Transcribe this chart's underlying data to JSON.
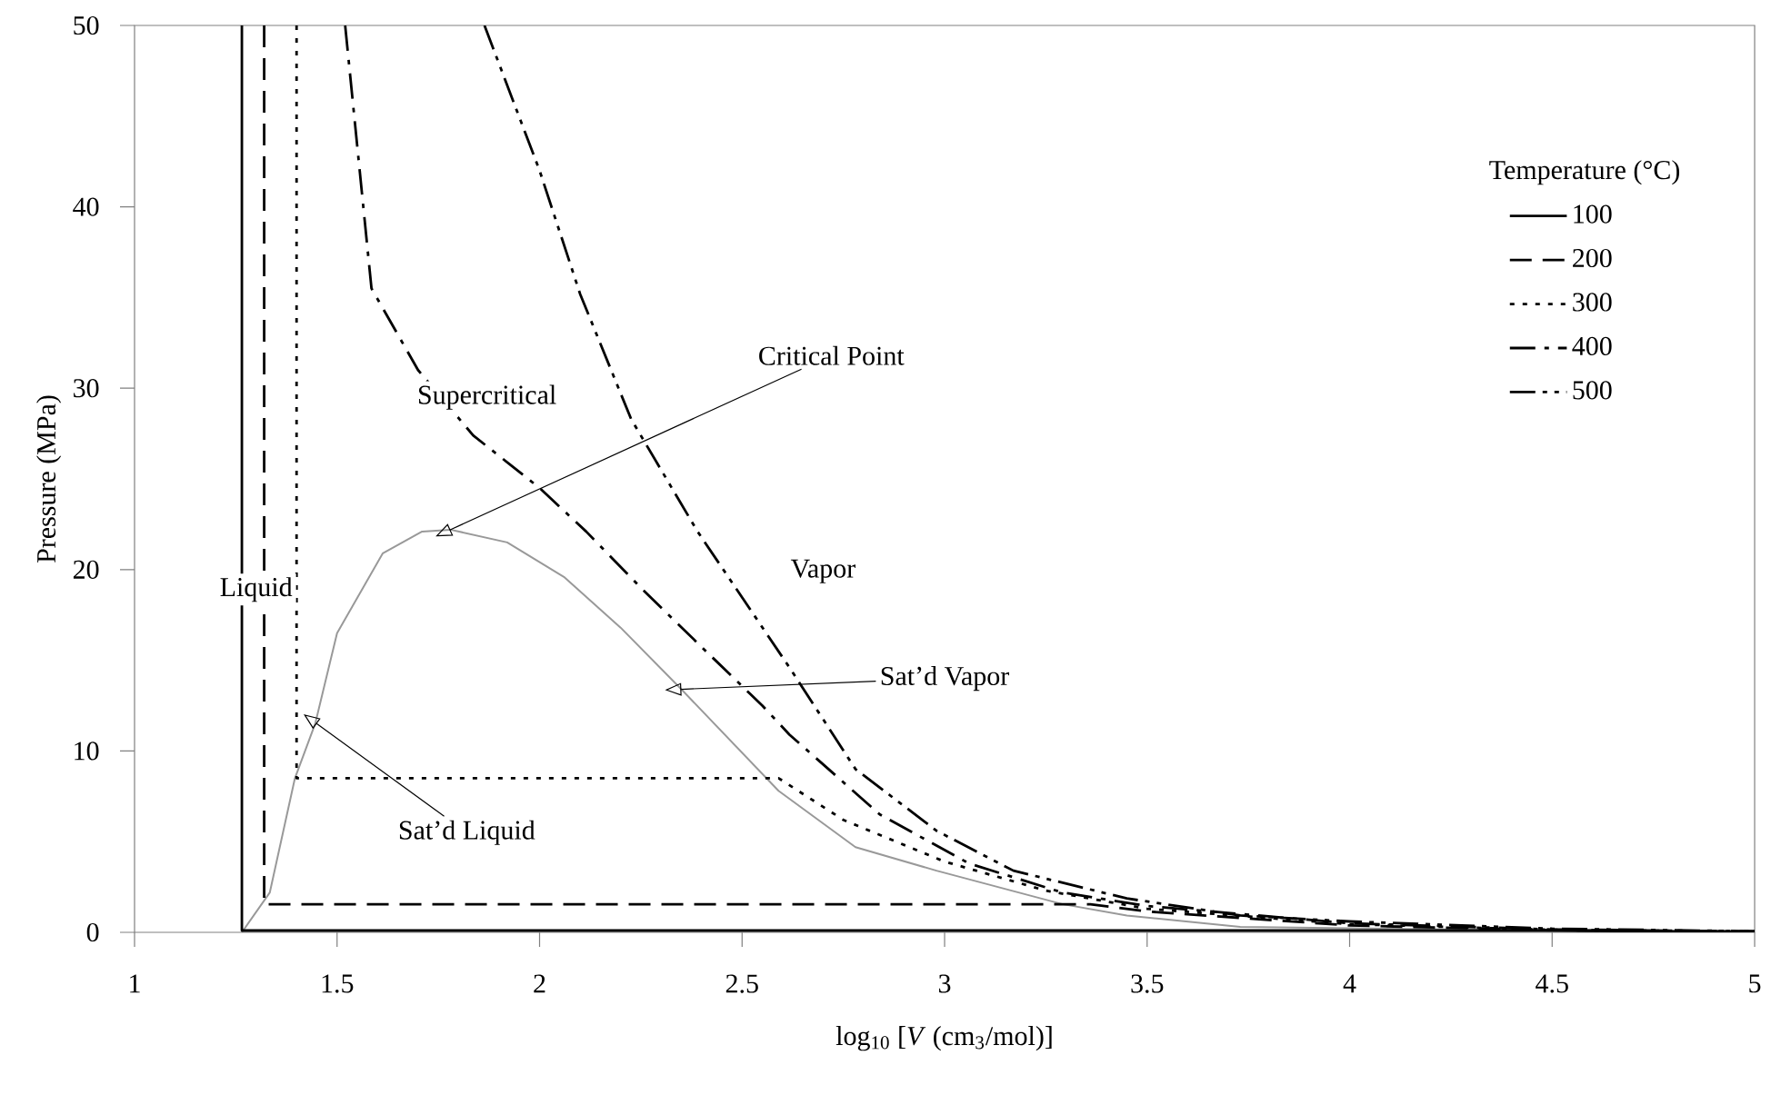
{
  "chart_data": {
    "type": "line",
    "xlabel": "log$_{10}$ [*V* (cm$_{3}$/mol)]",
    "ylabel": "Pressure (MPa)",
    "legend_title": "Temperature (°C)",
    "xlim": [
      1,
      5
    ],
    "ylim": [
      0,
      50
    ],
    "xticks": [
      1,
      1.5,
      2,
      2.5,
      3,
      3.5,
      4,
      4.5,
      5
    ],
    "yticks": [
      0,
      10,
      20,
      30,
      40,
      50
    ],
    "grid": false,
    "legend": "right",
    "series": [
      {
        "color": "#999999",
        "line_style": "solid",
        "x": [
          1.265,
          1.334,
          1.396,
          1.446,
          1.5,
          1.613,
          1.71,
          1.78,
          1.92,
          2.06,
          2.2,
          2.35,
          2.59,
          2.78,
          2.98,
          3.29,
          3.45,
          3.73,
          4.48
        ],
        "values": [
          0,
          2.2,
          8.5,
          11.5,
          16.5,
          20.9,
          22.1,
          22.2,
          21.5,
          19.6,
          16.8,
          13.4,
          7.8,
          4.7,
          3.4,
          1.56,
          0.93,
          0.3,
          0.1
        ]
      },
      {
        "name": "100",
        "color": "#000000",
        "line_style": "solid",
        "x": [
          1.265,
          1.265,
          4.48,
          5
        ],
        "values": [
          50,
          0.1,
          0.1,
          0.03
        ]
      },
      {
        "name": "200",
        "color": "#000000",
        "line_style": "dashed",
        "x": [
          1.32,
          1.32,
          3.36,
          3.5,
          4,
          4.5,
          5
        ],
        "values": [
          50,
          1.55,
          1.55,
          1.15,
          0.38,
          0.12,
          0.04
        ]
      },
      {
        "name": "300",
        "color": "#000000",
        "line_style": "dotted",
        "x": [
          1.4,
          1.4,
          2.59,
          2.75,
          3.0,
          3.25,
          3.5,
          4,
          4.5,
          5
        ],
        "values": [
          50,
          8.5,
          8.5,
          6.2,
          3.9,
          2.3,
          1.3,
          0.45,
          0.14,
          0.05
        ]
      },
      {
        "name": "400",
        "color": "#000000",
        "line_style": "dashdot",
        "x": [
          1.52,
          1.585,
          1.7,
          1.836,
          2.0,
          2.115,
          2.25,
          2.42,
          2.55,
          2.617,
          2.84,
          3.06,
          3.29,
          3.5,
          4,
          4.5,
          5
        ],
        "values": [
          50,
          35.5,
          31,
          27.4,
          24.5,
          22.1,
          19,
          15.3,
          12.5,
          10.9,
          6.5,
          3.8,
          2.2,
          1.45,
          0.5,
          0.16,
          0.05
        ]
      },
      {
        "name": "500",
        "color": "#000000",
        "line_style": "dashdotdot",
        "x": [
          1.864,
          2.0,
          2.1,
          2.226,
          2.39,
          2.617,
          2.78,
          2.98,
          3.17,
          3.45,
          3.73,
          4.0,
          4.5,
          5
        ],
        "values": [
          50,
          42,
          35.2,
          28.3,
          22.1,
          14.6,
          9.0,
          5.6,
          3.4,
          1.87,
          0.93,
          0.6,
          0.2,
          0.06
        ]
      }
    ],
    "annotations": [
      "Liquid",
      "Supercritical",
      "Vapor",
      {
        "text": "Critical Point",
        "x": 1.78,
        "y": 22.2
      },
      {
        "text": "Sat’d Vapor",
        "x": 2.35,
        "y": 13.4
      },
      {
        "text": "Sat’d Liquid",
        "x": 1.45,
        "y": 11.5
      }
    ]
  }
}
